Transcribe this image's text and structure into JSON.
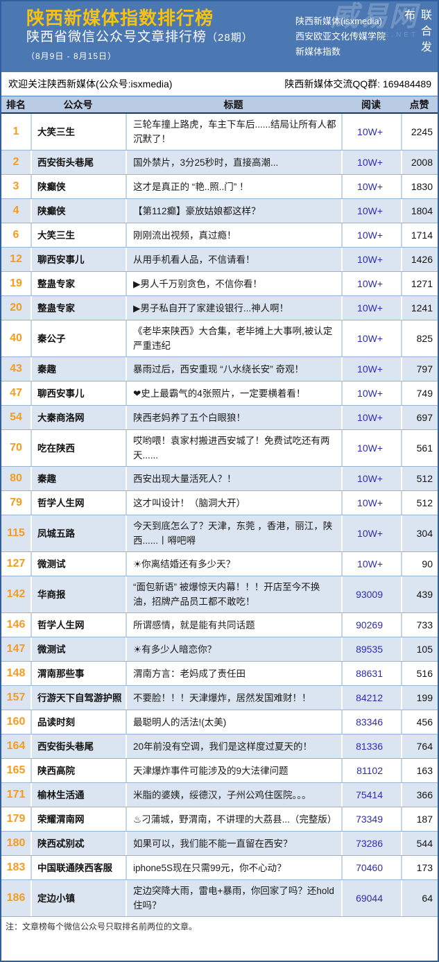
{
  "header": {
    "title": "陕西新媒体指数排行榜",
    "subtitle": "陕西省微信公众号文章排行榜",
    "issue": "（28期）",
    "date_range": "（8月9日 - 8月15日）",
    "org_lines": {
      "line1": "陕西新媒体(isxmedia)",
      "line2": "西安欧亚文化传媒学院",
      "line3": "新媒体指数"
    },
    "joint_release": "联合发布",
    "watermark_logo": "威易网",
    "watermark_sub": "WESTE.NET"
  },
  "welcome_bar": {
    "left": "欢迎关注陕西新媒体(公众号:isxmedia)",
    "right": "陕西新媒体交流QQ群: 169484489"
  },
  "table": {
    "columns": {
      "rank": "排名",
      "account": "公众号",
      "title": "标题",
      "reads": "阅读",
      "likes": "点赞"
    },
    "rows": [
      {
        "rank": "1",
        "account": "大笑三生",
        "title": "三轮车撞上路虎，车主下车后......结局让所有人都沉默了！",
        "reads": "10W+",
        "likes": "2245"
      },
      {
        "rank": "2",
        "account": "西安街头巷尾",
        "title": "国外禁片，3分25秒时，直接高潮...",
        "reads": "10W+",
        "likes": "2008"
      },
      {
        "rank": "3",
        "account": "陕癫侠",
        "title": "这才是真正的 “艳..照..门” ！",
        "reads": "10W+",
        "likes": "1830"
      },
      {
        "rank": "4",
        "account": "陕癫侠",
        "title": "【第112癫】豪放姑娘都这样？",
        "reads": "10W+",
        "likes": "1804"
      },
      {
        "rank": "6",
        "account": "大笑三生",
        "title": "刚刚流出视频，真过瘾！",
        "reads": "10W+",
        "likes": "1714"
      },
      {
        "rank": "12",
        "account": "聊西安事儿",
        "title": "从用手机看人品，不信请看！",
        "reads": "10W+",
        "likes": "1426"
      },
      {
        "rank": "19",
        "account": "整蛊专家",
        "title": "▶男人千万别贪色，不信你看！",
        "reads": "10W+",
        "likes": "1271"
      },
      {
        "rank": "20",
        "account": "整蛊专家",
        "title": "▶男子私自开了家建设银行...神人啊！",
        "reads": "10W+",
        "likes": "1241"
      },
      {
        "rank": "40",
        "account": "秦公子",
        "title": "《老毕来陕西》大合集，老毕摊上大事咧,被认定严重违纪",
        "reads": "10W+",
        "likes": "825"
      },
      {
        "rank": "43",
        "account": "秦趣",
        "title": "暴雨过后，西安重现 “八水绕长安” 奇观！",
        "reads": "10W+",
        "likes": "797"
      },
      {
        "rank": "47",
        "account": "聊西安事儿",
        "title": "❤史上最霸气的4张照片，一定要横着看！",
        "reads": "10W+",
        "likes": "749"
      },
      {
        "rank": "54",
        "account": "大秦商洛网",
        "title": "陕西老妈养了五个白眼狼！",
        "reads": "10W+",
        "likes": "697"
      },
      {
        "rank": "70",
        "account": "吃在陕西",
        "title": "哎哟喂！袁家村搬进西安城了！免费试吃还有两天......",
        "reads": "10W+",
        "likes": "561"
      },
      {
        "rank": "80",
        "account": "秦趣",
        "title": "西安出现大量活死人？！",
        "reads": "10W+",
        "likes": "512"
      },
      {
        "rank": "79",
        "account": "哲学人生网",
        "title": "这才叫设计！（脑洞大开）",
        "reads": "10W+",
        "likes": "512"
      },
      {
        "rank": "115",
        "account": "凤城五路",
        "title": "今天到底怎么了？天津，东莞 ，香港，丽江，陕西......丨嘚吧嘚",
        "reads": "10W+",
        "likes": "304"
      },
      {
        "rank": "127",
        "account": "微测试",
        "title": "☀你离结婚还有多少天？",
        "reads": "10W+",
        "likes": "90"
      },
      {
        "rank": "142",
        "account": "华商报",
        "title": "“面包新语” 被爆惊天内幕！！！开店至今不换油，招牌产品员工都不敢吃！",
        "reads": "93009",
        "likes": "439"
      },
      {
        "rank": "146",
        "account": "哲学人生网",
        "title": "所谓感情，就是能有共同话题",
        "reads": "90269",
        "likes": "733"
      },
      {
        "rank": "147",
        "account": "微测试",
        "title": "☀有多少人暗恋你？",
        "reads": "89535",
        "likes": "105"
      },
      {
        "rank": "148",
        "account": "渭南那些事",
        "title": "渭南方言：老妈成了责任田",
        "reads": "88631",
        "likes": "516"
      },
      {
        "rank": "157",
        "account": "行游天下自驾游护照",
        "title": "不要脸！！！天津爆炸，居然发国难财！！",
        "reads": "84212",
        "likes": "199"
      },
      {
        "rank": "160",
        "account": "品读时刻",
        "title": "最聪明人的活法!(太美)",
        "reads": "83346",
        "likes": "456"
      },
      {
        "rank": "164",
        "account": "西安街头巷尾",
        "title": "20年前没有空调，我们是这样度过夏天的！",
        "reads": "81336",
        "likes": "764"
      },
      {
        "rank": "165",
        "account": "陕西高院",
        "title": "天津爆炸事件可能涉及的9大法律问题",
        "reads": "81102",
        "likes": "163"
      },
      {
        "rank": "171",
        "account": "榆林生活通",
        "title": "米脂的婆姨，绥德汉，子州公鸡住医院。。。",
        "reads": "75414",
        "likes": "366"
      },
      {
        "rank": "179",
        "account": "荣耀渭南网",
        "title": "♨刁蒲城，野渭南，不讲理的大荔县...（完整版）",
        "reads": "73349",
        "likes": "187"
      },
      {
        "rank": "180",
        "account": "陕西忒别忒",
        "title": "如果可以，我们能不能一直留在西安？",
        "reads": "73286",
        "likes": "544"
      },
      {
        "rank": "183",
        "account": "中国联通陕西客服",
        "title": "iphone5S现在只需99元，你不心动？",
        "reads": "70460",
        "likes": "173"
      },
      {
        "rank": "186",
        "account": "定边小镇",
        "title": "定边突降大雨，雷电+暴雨，你回家了吗？还hold住吗？",
        "reads": "69044",
        "likes": "64"
      }
    ]
  },
  "footer": {
    "note": "注：文章榜每个微信公众号只取排名前两位的文章。"
  },
  "colors": {
    "header_bg": "#4b77b2",
    "title_yellow": "#f5c211",
    "rank_orange": "#f59c20",
    "reads_blue": "#2d2bb4",
    "table_header_bg": "#b9cce4",
    "alt_row_bg": "#dbe5f1",
    "grid_line": "#95b3d7"
  }
}
